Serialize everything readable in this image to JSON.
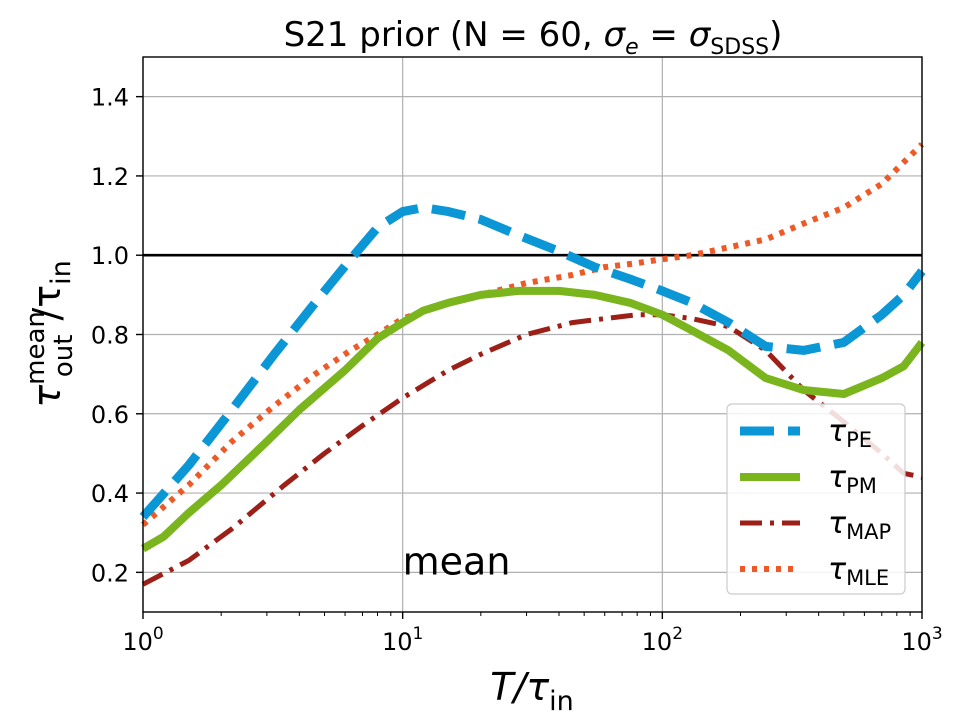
{
  "chart_data": {
    "type": "line",
    "title": "S21 prior (N = 60, σe = σSDSS)",
    "title_parts": {
      "main": "S21 prior (N = 60, ",
      "sigma": "σ",
      "sub_e": "e",
      "eq": " = ",
      "sigma2": "σ",
      "sub_sdss": "SDSS",
      "close": ")"
    },
    "xlabel": {
      "base": "T/τ",
      "sub": "in"
    },
    "ylabel": {
      "base": "τ",
      "sup": "mean",
      "sub": "out",
      "tail": "/τ",
      "tail_sub": "in"
    },
    "xscale": "log",
    "xlim": [
      1,
      1000
    ],
    "ylim": [
      0.1,
      1.5
    ],
    "x_ticks": [
      {
        "value": 1,
        "base": "10",
        "exp": "0"
      },
      {
        "value": 10,
        "base": "10",
        "exp": "1"
      },
      {
        "value": 100,
        "base": "10",
        "exp": "2"
      },
      {
        "value": 1000,
        "base": "10",
        "exp": "3"
      }
    ],
    "y_ticks": [
      {
        "value": 0.2,
        "label": "0.2"
      },
      {
        "value": 0.4,
        "label": "0.4"
      },
      {
        "value": 0.6,
        "label": "0.6"
      },
      {
        "value": 0.8,
        "label": "0.8"
      },
      {
        "value": 1.0,
        "label": "1.0"
      },
      {
        "value": 1.2,
        "label": "1.2"
      },
      {
        "value": 1.4,
        "label": "1.4"
      }
    ],
    "grid": true,
    "reference_line": 1.0,
    "annotation": {
      "text": "mean",
      "x": 10,
      "y": 0.2
    },
    "legend_position": "lower-right",
    "series": [
      {
        "name": "τPE",
        "label_base": "τ",
        "label_sub": "PE",
        "color": "#0b96d6",
        "style": "dashed",
        "x": [
          1,
          1.5,
          2.2,
          3.2,
          4.6,
          6.3,
          8,
          10,
          12,
          15,
          20,
          28,
          40,
          55,
          75,
          100,
          130,
          180,
          250,
          350,
          500,
          700,
          850,
          1000
        ],
        "y": [
          0.34,
          0.47,
          0.61,
          0.75,
          0.88,
          0.99,
          1.07,
          1.11,
          1.12,
          1.11,
          1.09,
          1.05,
          1.01,
          0.97,
          0.94,
          0.91,
          0.88,
          0.83,
          0.77,
          0.76,
          0.78,
          0.85,
          0.9,
          0.96
        ]
      },
      {
        "name": "τPM",
        "label_base": "τ",
        "label_sub": "PM",
        "color": "#7ab51d",
        "style": "solid",
        "x": [
          1,
          1.2,
          1.5,
          2,
          3,
          4,
          6,
          8,
          10,
          12,
          15,
          20,
          28,
          40,
          55,
          75,
          100,
          130,
          180,
          250,
          350,
          500,
          700,
          850,
          1000
        ],
        "y": [
          0.26,
          0.29,
          0.35,
          0.42,
          0.53,
          0.61,
          0.71,
          0.79,
          0.83,
          0.86,
          0.88,
          0.9,
          0.91,
          0.91,
          0.9,
          0.88,
          0.85,
          0.81,
          0.76,
          0.69,
          0.66,
          0.65,
          0.69,
          0.72,
          0.78
        ]
      },
      {
        "name": "τMAP",
        "label_base": "τ",
        "label_sub": "MAP",
        "color": "#9c2017",
        "style": "dashdot",
        "x": [
          1,
          1.5,
          2.2,
          3.5,
          5,
          7,
          10,
          15,
          20,
          30,
          45,
          60,
          80,
          100,
          130,
          180,
          250,
          350,
          500,
          700,
          850,
          1000
        ],
        "y": [
          0.17,
          0.23,
          0.31,
          0.42,
          0.5,
          0.57,
          0.64,
          0.71,
          0.75,
          0.8,
          0.83,
          0.84,
          0.85,
          0.85,
          0.84,
          0.82,
          0.76,
          0.66,
          0.58,
          0.5,
          0.45,
          0.44
        ]
      },
      {
        "name": "τMLE",
        "label_base": "τ",
        "label_sub": "MLE",
        "color": "#ee5a27",
        "style": "dotted",
        "x": [
          1,
          1.5,
          2.2,
          3.2,
          4.6,
          6.3,
          8,
          10,
          15,
          20,
          30,
          45,
          60,
          80,
          100,
          130,
          180,
          250,
          350,
          500,
          700,
          1000
        ],
        "y": [
          0.32,
          0.42,
          0.53,
          0.62,
          0.7,
          0.76,
          0.8,
          0.84,
          0.88,
          0.9,
          0.93,
          0.95,
          0.97,
          0.98,
          0.99,
          1.0,
          1.02,
          1.04,
          1.08,
          1.12,
          1.18,
          1.28
        ]
      }
    ]
  }
}
